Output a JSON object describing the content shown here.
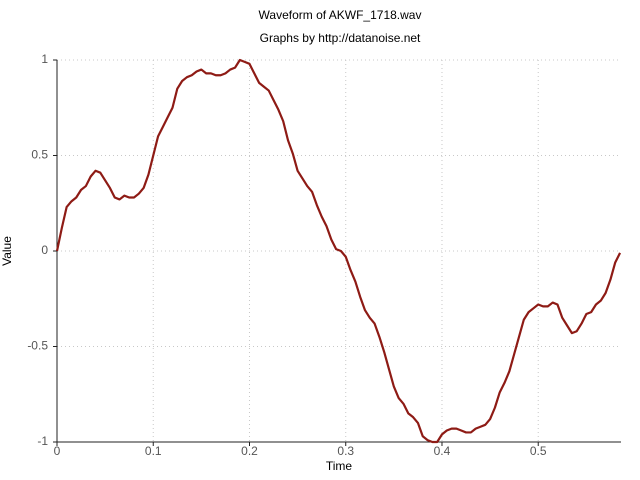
{
  "chart_data": {
    "type": "line",
    "title": "Waveform of AKWF_1718.wav",
    "subtitle": "Graphs by http://datanoise.net",
    "x_label": "Time",
    "y_label": "Value",
    "grid": true,
    "xlim": [
      0,
      0.586
    ],
    "ylim": [
      -1,
      1
    ],
    "xticks": [
      0,
      0.1,
      0.2,
      0.3,
      0.4,
      0.5
    ],
    "yticks": [
      1,
      0.5,
      0,
      -0.5,
      -1
    ],
    "x": [
      0,
      0.005,
      0.01,
      0.015,
      0.02,
      0.025,
      0.03,
      0.035,
      0.04,
      0.045,
      0.05,
      0.055,
      0.06,
      0.065,
      0.07,
      0.075,
      0.08,
      0.085,
      0.09,
      0.095,
      0.1,
      0.105,
      0.11,
      0.115,
      0.12,
      0.125,
      0.13,
      0.135,
      0.14,
      0.145,
      0.15,
      0.155,
      0.16,
      0.165,
      0.17,
      0.175,
      0.18,
      0.185,
      0.19,
      0.195,
      0.2,
      0.205,
      0.21,
      0.215,
      0.22,
      0.225,
      0.23,
      0.235,
      0.24,
      0.245,
      0.25,
      0.255,
      0.26,
      0.265,
      0.27,
      0.275,
      0.28,
      0.285,
      0.29,
      0.295,
      0.3,
      0.305,
      0.31,
      0.315,
      0.32,
      0.325,
      0.33,
      0.335,
      0.34,
      0.345,
      0.35,
      0.355,
      0.36,
      0.365,
      0.37,
      0.375,
      0.38,
      0.385,
      0.39,
      0.395,
      0.4,
      0.405,
      0.41,
      0.415,
      0.42,
      0.425,
      0.43,
      0.435,
      0.44,
      0.445,
      0.45,
      0.455,
      0.46,
      0.465,
      0.47,
      0.475,
      0.48,
      0.485,
      0.49,
      0.495,
      0.5,
      0.505,
      0.51,
      0.515,
      0.52,
      0.525,
      0.53,
      0.535,
      0.54,
      0.545,
      0.55,
      0.555,
      0.56,
      0.565,
      0.57,
      0.575,
      0.58,
      0.585
    ],
    "series": [
      {
        "color": "#8e1b15",
        "values": [
          0,
          0.12,
          0.23,
          0.26,
          0.28,
          0.32,
          0.34,
          0.39,
          0.42,
          0.41,
          0.37,
          0.33,
          0.28,
          0.27,
          0.29,
          0.28,
          0.28,
          0.3,
          0.33,
          0.4,
          0.5,
          0.6,
          0.65,
          0.7,
          0.75,
          0.85,
          0.89,
          0.91,
          0.92,
          0.94,
          0.95,
          0.93,
          0.93,
          0.92,
          0.92,
          0.93,
          0.95,
          0.96,
          1.0,
          0.99,
          0.98,
          0.93,
          0.88,
          0.86,
          0.84,
          0.79,
          0.74,
          0.68,
          0.58,
          0.51,
          0.42,
          0.38,
          0.34,
          0.31,
          0.24,
          0.18,
          0.13,
          0.06,
          0.01,
          0.0,
          -0.03,
          -0.1,
          -0.16,
          -0.24,
          -0.31,
          -0.35,
          -0.38,
          -0.45,
          -0.53,
          -0.62,
          -0.71,
          -0.77,
          -0.8,
          -0.85,
          -0.87,
          -0.9,
          -0.97,
          -0.99,
          -1.0,
          -1.0,
          -0.96,
          -0.94,
          -0.93,
          -0.93,
          -0.94,
          -0.95,
          -0.95,
          -0.93,
          -0.92,
          -0.91,
          -0.88,
          -0.82,
          -0.74,
          -0.69,
          -0.63,
          -0.54,
          -0.45,
          -0.36,
          -0.32,
          -0.3,
          -0.28,
          -0.29,
          -0.29,
          -0.27,
          -0.28,
          -0.35,
          -0.39,
          -0.43,
          -0.42,
          -0.38,
          -0.33,
          -0.32,
          -0.28,
          -0.26,
          -0.22,
          -0.15,
          -0.06,
          -0.01
        ]
      }
    ]
  }
}
